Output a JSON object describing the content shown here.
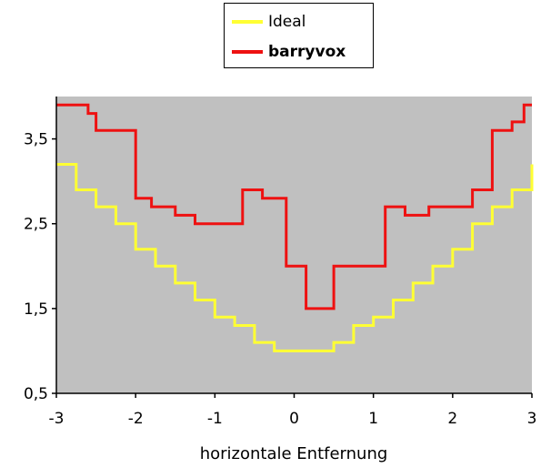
{
  "chart_data": {
    "type": "line",
    "step": true,
    "title": "",
    "xlabel": "horizontale Entfernung",
    "ylabel": "",
    "xlim": [
      -3,
      3
    ],
    "ylim": [
      0.5,
      4.0
    ],
    "x_ticks": [
      "-3",
      "-2",
      "-1",
      "0",
      "1",
      "2",
      "3"
    ],
    "y_ticks": [
      "0,5",
      "1,5",
      "2,5",
      "3,5"
    ],
    "y_tick_values": [
      0.5,
      1.5,
      2.5,
      3.5
    ],
    "x_tick_values": [
      -3,
      -2,
      -1,
      0,
      1,
      2,
      3
    ],
    "plot_background": "#c0c0c0",
    "legend_position": "top-center",
    "series": [
      {
        "name": "Ideal",
        "color": "#ffff33",
        "bold_label": false,
        "points": [
          [
            -3.0,
            3.2
          ],
          [
            -2.75,
            3.2
          ],
          [
            -2.75,
            2.9
          ],
          [
            -2.5,
            2.9
          ],
          [
            -2.5,
            2.7
          ],
          [
            -2.25,
            2.7
          ],
          [
            -2.25,
            2.5
          ],
          [
            -2.0,
            2.5
          ],
          [
            -2.0,
            2.2
          ],
          [
            -1.75,
            2.2
          ],
          [
            -1.75,
            2.0
          ],
          [
            -1.5,
            2.0
          ],
          [
            -1.5,
            1.8
          ],
          [
            -1.25,
            1.8
          ],
          [
            -1.25,
            1.6
          ],
          [
            -1.0,
            1.6
          ],
          [
            -1.0,
            1.4
          ],
          [
            -0.75,
            1.4
          ],
          [
            -0.75,
            1.3
          ],
          [
            -0.5,
            1.3
          ],
          [
            -0.5,
            1.1
          ],
          [
            -0.25,
            1.1
          ],
          [
            -0.25,
            1.0
          ],
          [
            0.5,
            1.0
          ],
          [
            0.5,
            1.1
          ],
          [
            0.75,
            1.1
          ],
          [
            0.75,
            1.3
          ],
          [
            1.0,
            1.3
          ],
          [
            1.0,
            1.4
          ],
          [
            1.25,
            1.4
          ],
          [
            1.25,
            1.6
          ],
          [
            1.5,
            1.6
          ],
          [
            1.5,
            1.8
          ],
          [
            1.75,
            1.8
          ],
          [
            1.75,
            2.0
          ],
          [
            2.0,
            2.0
          ],
          [
            2.0,
            2.2
          ],
          [
            2.25,
            2.2
          ],
          [
            2.25,
            2.5
          ],
          [
            2.5,
            2.5
          ],
          [
            2.5,
            2.7
          ],
          [
            2.75,
            2.7
          ],
          [
            2.75,
            2.9
          ],
          [
            3.0,
            2.9
          ],
          [
            3.0,
            3.2
          ]
        ]
      },
      {
        "name": "barryvox",
        "color": "#ee1111",
        "bold_label": true,
        "points": [
          [
            -3.0,
            3.9
          ],
          [
            -2.6,
            3.9
          ],
          [
            -2.6,
            3.8
          ],
          [
            -2.5,
            3.8
          ],
          [
            -2.5,
            3.6
          ],
          [
            -2.0,
            3.6
          ],
          [
            -2.0,
            2.8
          ],
          [
            -1.8,
            2.8
          ],
          [
            -1.8,
            2.7
          ],
          [
            -1.5,
            2.7
          ],
          [
            -1.5,
            2.6
          ],
          [
            -1.25,
            2.6
          ],
          [
            -1.25,
            2.5
          ],
          [
            -0.65,
            2.5
          ],
          [
            -0.65,
            2.9
          ],
          [
            -0.4,
            2.9
          ],
          [
            -0.4,
            2.8
          ],
          [
            -0.1,
            2.8
          ],
          [
            -0.1,
            2.0
          ],
          [
            0.15,
            2.0
          ],
          [
            0.15,
            1.5
          ],
          [
            0.5,
            1.5
          ],
          [
            0.5,
            2.0
          ],
          [
            1.15,
            2.0
          ],
          [
            1.15,
            2.7
          ],
          [
            1.4,
            2.7
          ],
          [
            1.4,
            2.6
          ],
          [
            1.7,
            2.6
          ],
          [
            1.7,
            2.7
          ],
          [
            2.25,
            2.7
          ],
          [
            2.25,
            2.9
          ],
          [
            2.5,
            2.9
          ],
          [
            2.5,
            3.6
          ],
          [
            2.75,
            3.6
          ],
          [
            2.75,
            3.7
          ],
          [
            2.9,
            3.7
          ],
          [
            2.9,
            3.9
          ],
          [
            3.0,
            3.9
          ]
        ]
      }
    ]
  }
}
